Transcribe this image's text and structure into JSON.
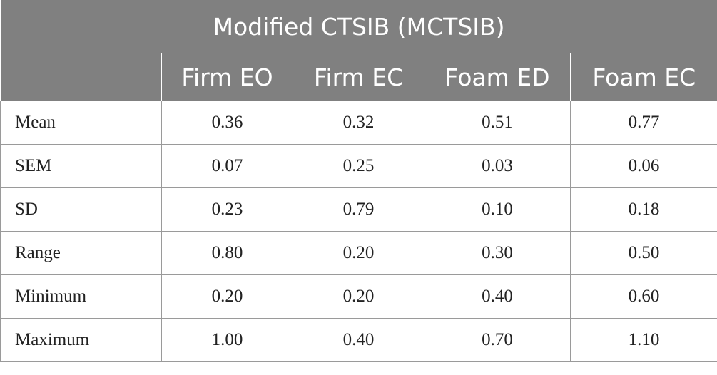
{
  "table": {
    "title": "Modified CTSIB (MCTSIB)",
    "columns": [
      "Firm EO",
      "Firm EC",
      "Foam ED",
      "Foam EC"
    ],
    "rows": [
      {
        "label": "Mean",
        "values": [
          "0.36",
          "0.32",
          "0.51",
          "0.77"
        ]
      },
      {
        "label": "SEM",
        "values": [
          "0.07",
          "0.25",
          "0.03",
          "0.06"
        ]
      },
      {
        "label": "SD",
        "values": [
          "0.23",
          "0.79",
          "0.10",
          "0.18"
        ]
      },
      {
        "label": "Range",
        "values": [
          "0.80",
          "0.20",
          "0.30",
          "0.50"
        ]
      },
      {
        "label": "Minimum",
        "values": [
          "0.20",
          "0.20",
          "0.40",
          "0.60"
        ]
      },
      {
        "label": "Maximum",
        "values": [
          "1.00",
          "0.40",
          "0.70",
          "1.10"
        ]
      }
    ],
    "header_color": "#808080"
  }
}
